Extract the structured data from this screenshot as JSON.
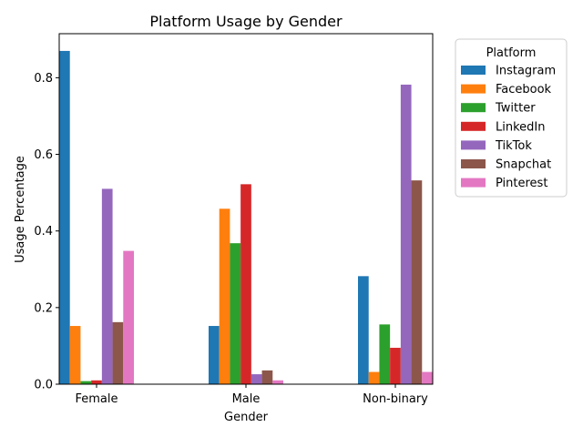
{
  "chart_data": {
    "type": "bar",
    "title": "Platform Usage by Gender",
    "xlabel": "Gender",
    "ylabel": "Usage Percentage",
    "categories": [
      "Female",
      "Male",
      "Non-binary"
    ],
    "ylim": [
      0,
      0.915
    ],
    "yticks": [
      0.0,
      0.2,
      0.4,
      0.6,
      0.8
    ],
    "ytick_labels": [
      "0.0",
      "0.2",
      "0.4",
      "0.6",
      "0.8"
    ],
    "grid": false,
    "legend": {
      "title": "Platform",
      "placement": "outside-upper-right"
    },
    "series": [
      {
        "name": "Instagram",
        "color": "#1f77b4",
        "values": [
          0.87,
          0.152,
          0.282
        ]
      },
      {
        "name": "Facebook",
        "color": "#ff7f0e",
        "values": [
          0.152,
          0.458,
          0.032
        ]
      },
      {
        "name": "Twitter",
        "color": "#2ca02c",
        "values": [
          0.008,
          0.368,
          0.156
        ]
      },
      {
        "name": "LinkedIn",
        "color": "#d62728",
        "values": [
          0.01,
          0.522,
          0.095
        ]
      },
      {
        "name": "TikTok",
        "color": "#9467bd",
        "values": [
          0.51,
          0.026,
          0.782
        ]
      },
      {
        "name": "Snapchat",
        "color": "#8c564b",
        "values": [
          0.162,
          0.036,
          0.532
        ]
      },
      {
        "name": "Pinterest",
        "color": "#e377c2",
        "values": [
          0.348,
          0.01,
          0.032
        ]
      }
    ]
  }
}
